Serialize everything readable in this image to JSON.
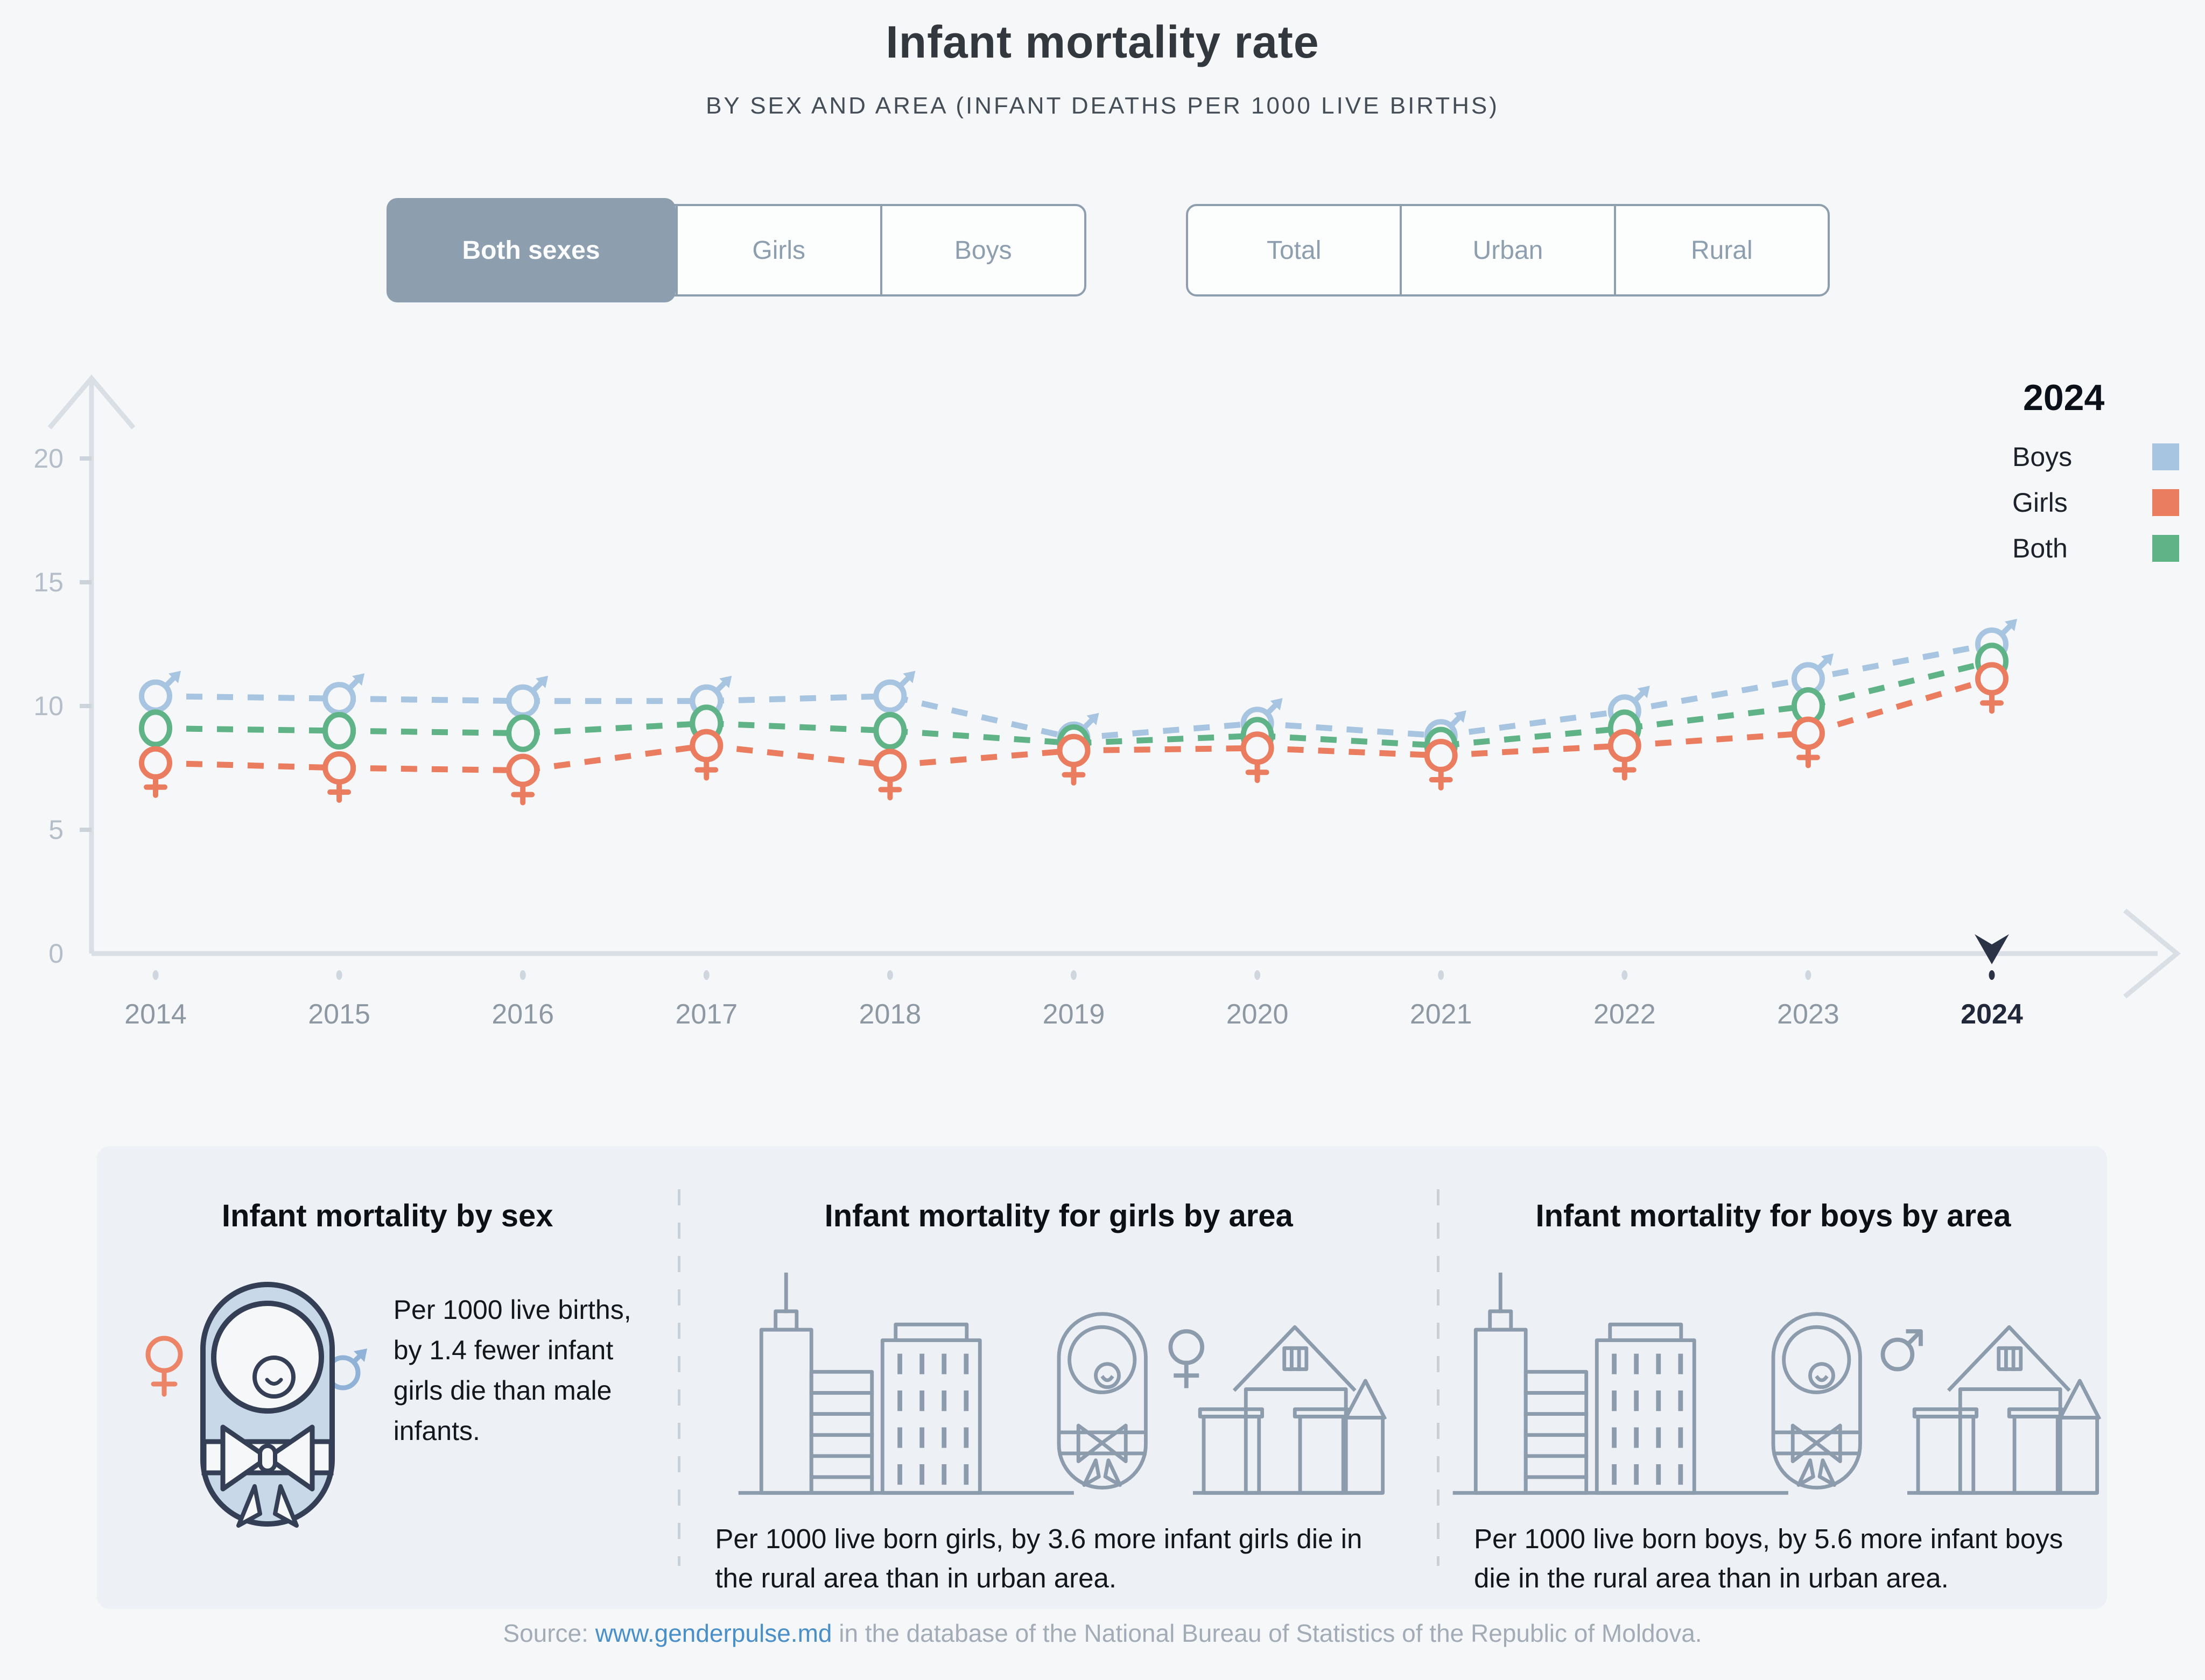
{
  "page": {
    "title": "Infant mortality rate",
    "subtitle": "BY SEX AND AREA (INFANT DEATHS PER 1000 LIVE BIRTHS)"
  },
  "controls": {
    "sex_filter": {
      "options": [
        "Both sexes",
        "Girls",
        "Boys"
      ],
      "selected": "Both sexes"
    },
    "area_filter": {
      "options": [
        "Total",
        "Urban",
        "Rural"
      ],
      "selected": null
    }
  },
  "legend": {
    "year": "2024",
    "items": [
      {
        "label": "Boys",
        "color": "#a7c4e0"
      },
      {
        "label": "Girls",
        "color": "#ea7c5f"
      },
      {
        "label": "Both",
        "color": "#5fb386"
      }
    ]
  },
  "chart_data": {
    "type": "line",
    "title": "Infant mortality rate by sex (infant deaths per 1000 live births)",
    "xlabel": "",
    "ylabel": "",
    "x": [
      2014,
      2015,
      2016,
      2017,
      2018,
      2019,
      2020,
      2021,
      2022,
      2023,
      2024
    ],
    "series": [
      {
        "name": "Boys",
        "color": "#a7c4e0",
        "marker": "male",
        "values": [
          10.4,
          10.3,
          10.2,
          10.2,
          10.4,
          8.7,
          9.3,
          8.8,
          9.8,
          11.1,
          12.5
        ]
      },
      {
        "name": "Both",
        "color": "#5fb386",
        "marker": "circle",
        "values": [
          9.1,
          9.0,
          8.9,
          9.3,
          9.0,
          8.5,
          8.8,
          8.4,
          9.1,
          10.0,
          11.8
        ]
      },
      {
        "name": "Girls",
        "color": "#ea7c5f",
        "marker": "female",
        "values": [
          7.7,
          7.5,
          7.4,
          8.4,
          7.6,
          8.2,
          8.3,
          8.0,
          8.4,
          8.9,
          11.1
        ]
      }
    ],
    "ylim": [
      0,
      22
    ],
    "yticks": [
      0,
      5,
      10,
      15,
      20
    ],
    "selected_x": 2024,
    "grid": false,
    "line_style": "dashed",
    "legend_position": "top-right"
  },
  "cards": [
    {
      "title": "Infant mortality by sex",
      "text": "Per 1000 live births, by 1.4 fewer infant girls die than male infants."
    },
    {
      "title": "Infant mortality for girls by area",
      "text": "Per 1000 live born girls, by 3.6 more infant girls die in the rural area than in urban area."
    },
    {
      "title": "Infant mortality for boys by area",
      "text": "Per 1000 live born boys, by 5.6 more infant boys die in the rural area than in urban area."
    }
  ],
  "source": {
    "prefix": "Source: ",
    "link": "www.genderpulse.md",
    "suffix": " in the database of the National Bureau of Statistics of the Republic of Moldova."
  },
  "colors": {
    "page_bg": "#f6f7f9",
    "card_bg": "#edf0f4",
    "axis": "#d9dfe5",
    "tick_label": "#b5bec8",
    "year_label": "#8e98a3",
    "selected_year": "#2b3447",
    "button_accent": "#8d9fae",
    "boys": "#a7c4e0",
    "girls": "#ea7c5f",
    "both": "#5fb386",
    "icon_navy": "#343e55",
    "icon_gray": "#8d9cac",
    "baby_fill": "#c8d8e9",
    "link": "#4a8fc7"
  }
}
